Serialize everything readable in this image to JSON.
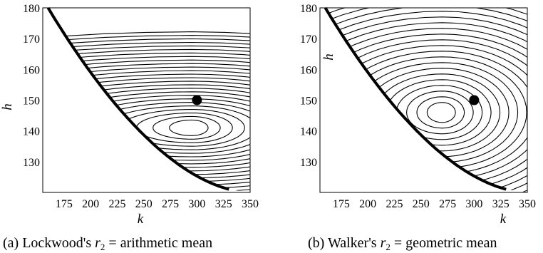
{
  "chart_data": [
    {
      "type": "contour",
      "xlabel": "k",
      "ylabel": "h",
      "xlim": [
        155,
        350
      ],
      "ylim": [
        120,
        180
      ],
      "xticks": [
        175,
        200,
        225,
        250,
        275,
        300,
        325,
        350
      ],
      "yticks": [
        130,
        140,
        150,
        160,
        170,
        180
      ],
      "marker": {
        "x": 300,
        "y": 150
      },
      "minimum": {
        "x": 295,
        "y": 141
      },
      "caption": {
        "prefix": "(a) Lockwood's ",
        "var": "r",
        "sub": "2",
        "suffix": " = arithmetic mean"
      }
    },
    {
      "type": "contour",
      "xlabel": "k",
      "ylabel": "h",
      "xlim": [
        155,
        350
      ],
      "ylim": [
        120,
        180
      ],
      "xticks": [
        175,
        200,
        225,
        250,
        275,
        300,
        325,
        350
      ],
      "yticks": [
        130,
        140,
        150,
        160,
        170,
        180
      ],
      "marker": {
        "x": 300,
        "y": 150
      },
      "minimum": {
        "x": 270,
        "y": 146
      },
      "caption": {
        "prefix": "(b) Walker's ",
        "var": "r",
        "sub": "2",
        "suffix": " = geometric mean"
      }
    }
  ]
}
